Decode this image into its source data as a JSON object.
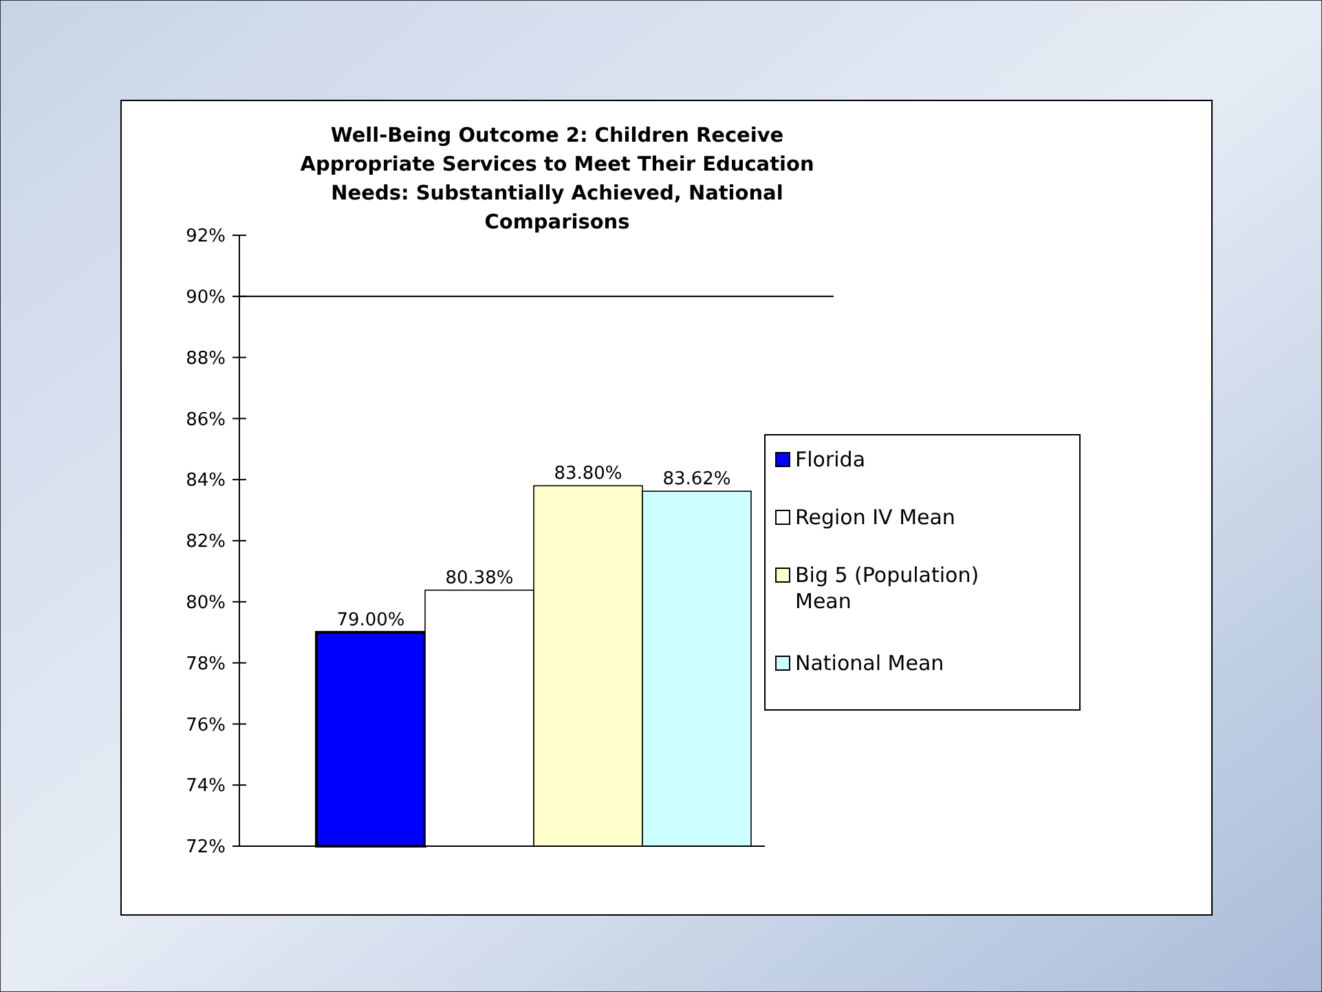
{
  "chart_data": {
    "type": "bar",
    "title": "Well-Being Outcome 2: Children Receive Appropriate Services to Meet Their Education Needs: Substantially Achieved, National Comparisons",
    "categories": [
      null
    ],
    "series": [
      {
        "name": "Florida",
        "color": "#0000ff",
        "values": [
          79.0
        ],
        "value_labels": [
          "79.00%"
        ]
      },
      {
        "name": "Region IV Mean",
        "color": "#ffffff",
        "values": [
          80.38
        ],
        "value_labels": [
          "80.38%"
        ]
      },
      {
        "name": "Big 5 (Population) Mean",
        "color": "#ffffcc",
        "values": [
          83.8
        ],
        "value_labels": [
          "83.80%"
        ]
      },
      {
        "name": "National Mean",
        "color": "#ccffff",
        "values": [
          83.62
        ],
        "value_labels": [
          "83.62%"
        ]
      }
    ],
    "ylim": [
      72,
      92
    ],
    "yticks": [
      {
        "value": 72,
        "label": "72%"
      },
      {
        "value": 74,
        "label": "74%"
      },
      {
        "value": 76,
        "label": "76%"
      },
      {
        "value": 78,
        "label": "78%"
      },
      {
        "value": 80,
        "label": "80%"
      },
      {
        "value": 82,
        "label": "82%"
      },
      {
        "value": 84,
        "label": "84%"
      },
      {
        "value": 86,
        "label": "86%"
      },
      {
        "value": 88,
        "label": "88%"
      },
      {
        "value": 90,
        "label": "90%"
      },
      {
        "value": 92,
        "label": "92%"
      }
    ],
    "ref_lines": [
      {
        "axis": "y",
        "value": 90,
        "color": "#000000"
      }
    ],
    "legend": "right"
  }
}
